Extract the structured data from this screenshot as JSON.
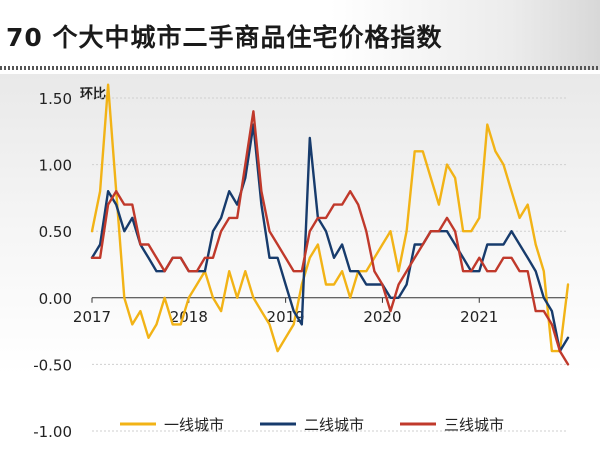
{
  "title": "70 个大中城市二手商品住宅价格指数",
  "chart_data": {
    "type": "line",
    "title": "70 个大中城市二手商品住宅价格指数",
    "ylabel": "环比",
    "xlabel": "",
    "ylim": [
      -1.0,
      1.5
    ],
    "yticks": [
      1.5,
      1.0,
      0.5,
      0.0,
      -0.5,
      -1.0
    ],
    "ytick_labels": [
      "1.50",
      "1.00",
      "0.50",
      "0.00",
      "-0.50",
      "-1.00"
    ],
    "x_ticks": [
      {
        "label": "2017",
        "index": 0
      },
      {
        "label": "2018",
        "index": 12
      },
      {
        "label": "2019",
        "index": 24
      },
      {
        "label": "2020",
        "index": 36
      },
      {
        "label": "2021",
        "index": 48
      }
    ],
    "x_count": 60,
    "grid": true,
    "legend_position": "bottom",
    "series": [
      {
        "name": "一线城市",
        "color": "#f2b316",
        "values": [
          0.5,
          0.8,
          1.6,
          0.8,
          0.0,
          -0.2,
          -0.1,
          -0.3,
          -0.2,
          0.0,
          -0.2,
          -0.2,
          0.0,
          0.1,
          0.2,
          0.0,
          -0.1,
          0.2,
          0.0,
          0.2,
          0.0,
          -0.1,
          -0.2,
          -0.4,
          -0.3,
          -0.2,
          0.1,
          0.3,
          0.4,
          0.1,
          0.1,
          0.2,
          0.0,
          0.2,
          0.2,
          0.3,
          0.4,
          0.5,
          0.2,
          0.5,
          1.1,
          1.1,
          0.9,
          0.7,
          1.0,
          0.9,
          0.5,
          0.5,
          0.6,
          1.3,
          1.1,
          1.0,
          0.8,
          0.6,
          0.7,
          0.4,
          0.2,
          -0.4,
          -0.4,
          0.1
        ]
      },
      {
        "name": "二线城市",
        "color": "#173b6c",
        "values": [
          0.3,
          0.4,
          0.8,
          0.7,
          0.5,
          0.6,
          0.4,
          0.3,
          0.2,
          0.2,
          0.3,
          0.3,
          0.2,
          0.2,
          0.2,
          0.5,
          0.6,
          0.8,
          0.7,
          0.9,
          1.3,
          0.7,
          0.3,
          0.3,
          0.1,
          -0.1,
          -0.2,
          1.2,
          0.6,
          0.5,
          0.3,
          0.4,
          0.2,
          0.2,
          0.1,
          0.1,
          0.1,
          0.0,
          0.0,
          0.1,
          0.4,
          0.4,
          0.5,
          0.5,
          0.5,
          0.4,
          0.3,
          0.2,
          0.2,
          0.4,
          0.4,
          0.4,
          0.5,
          0.4,
          0.3,
          0.2,
          0.0,
          -0.1,
          -0.4,
          -0.3
        ]
      },
      {
        "name": "三线城市",
        "color": "#c0392b",
        "values": [
          0.3,
          0.3,
          0.7,
          0.8,
          0.7,
          0.7,
          0.4,
          0.4,
          0.3,
          0.2,
          0.3,
          0.3,
          0.2,
          0.2,
          0.3,
          0.3,
          0.5,
          0.6,
          0.6,
          1.0,
          1.4,
          0.8,
          0.5,
          0.4,
          0.3,
          0.2,
          0.2,
          0.5,
          0.6,
          0.6,
          0.7,
          0.7,
          0.8,
          0.7,
          0.5,
          0.2,
          0.1,
          -0.1,
          0.1,
          0.2,
          0.3,
          0.4,
          0.5,
          0.5,
          0.6,
          0.5,
          0.2,
          0.2,
          0.3,
          0.2,
          0.2,
          0.3,
          0.3,
          0.2,
          0.2,
          -0.1,
          -0.1,
          -0.2,
          -0.4,
          -0.5
        ]
      }
    ]
  }
}
